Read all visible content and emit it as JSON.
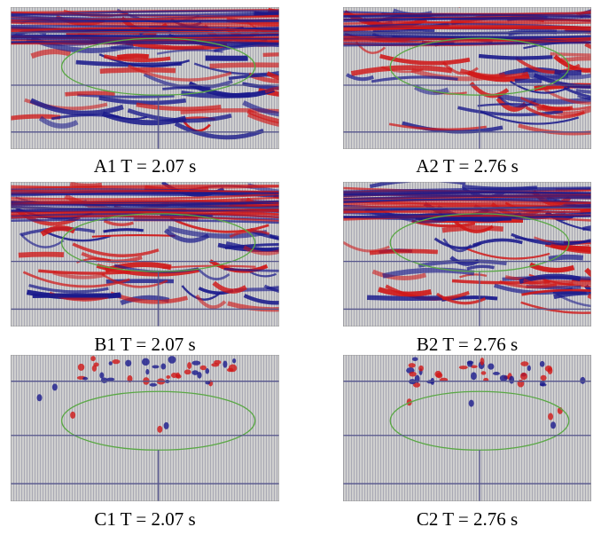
{
  "panels": [
    {
      "caption": "A1 T = 2.07 s"
    },
    {
      "caption": "A2 T = 2.76 s"
    },
    {
      "caption": "B1 T = 2.07 s"
    },
    {
      "caption": "B2 T = 2.76 s"
    },
    {
      "caption": "C1 T = 2.07 s"
    },
    {
      "caption": "C2 T = 2.76 s"
    }
  ]
}
